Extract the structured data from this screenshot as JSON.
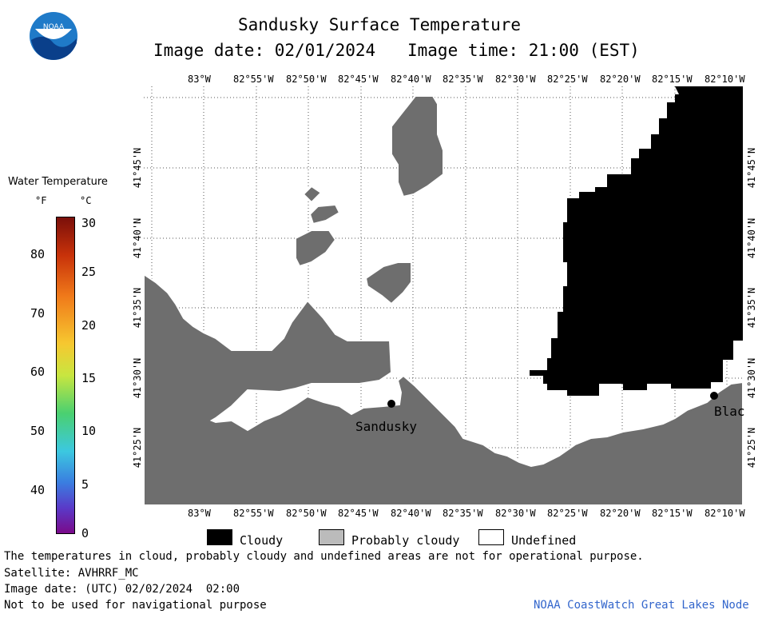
{
  "header": {
    "title": "Sandusky Surface Temperature",
    "image_date_label": "Image date: 02/01/2024",
    "image_time_label": "Image time: 21:00 (EST)"
  },
  "logo_text": "NOAA",
  "colorbar": {
    "title": "Water Temperature",
    "f_unit": "°F",
    "c_unit": "°C",
    "f_ticks": [
      "80",
      "70",
      "60",
      "50",
      "40"
    ],
    "c_ticks": [
      "30",
      "25",
      "20",
      "15",
      "10",
      "5",
      "0"
    ]
  },
  "map": {
    "lon_labels": [
      "83°W",
      "82°55'W",
      "82°50'W",
      "82°45'W",
      "82°40'W",
      "82°35'W",
      "82°30'W",
      "82°25'W",
      "82°20'W",
      "82°15'W",
      "82°10'W"
    ],
    "lat_labels": [
      "41°45'N",
      "41°40'N",
      "41°35'N",
      "41°30'N",
      "41°25'N"
    ],
    "places": [
      "Sandusky",
      "Blac"
    ]
  },
  "legend": {
    "cloudy": "Cloudy",
    "probably_cloudy": "Probably cloudy",
    "undefined": "Undefined"
  },
  "footer": {
    "disclaimer": "The temperatures in cloud, probably cloudy and undefined areas are not for operational purpose.",
    "satellite": "Satellite: AVHRRF_MC",
    "utc_date": "Image date: (UTC) 02/02/2024  02:00",
    "nav_warning": "Not to be used for navigational purpose",
    "credit": "NOAA CoastWatch Great Lakes Node"
  },
  "colors": {
    "land": "#6e6e6e",
    "cloudy": "#000000",
    "probably_cloudy": "#bbbbbb",
    "undefined": "#ffffff",
    "credit": "#3366cc"
  }
}
